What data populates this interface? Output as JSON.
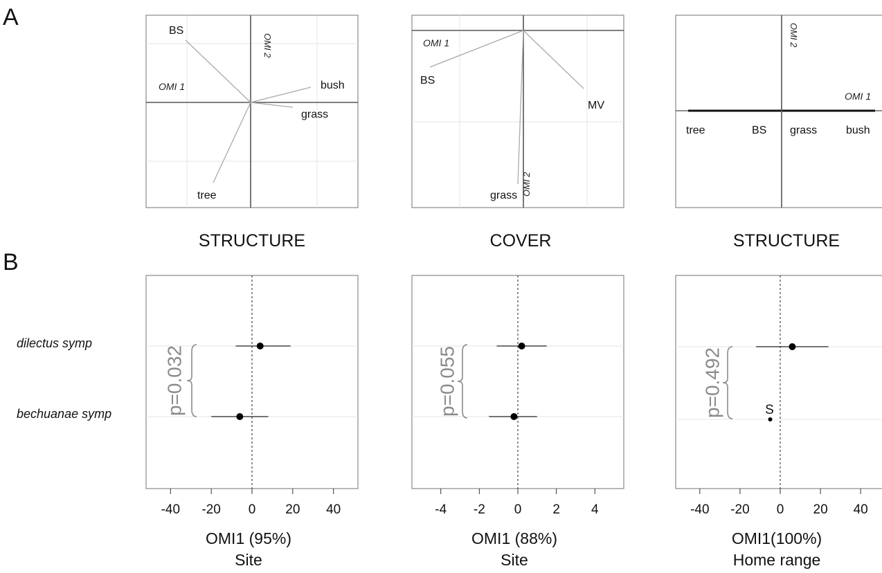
{
  "panel_labels": {
    "a": "A",
    "b": "B"
  },
  "biplot_titles": [
    "STRUCTURE",
    "COVER",
    "STRUCTURE"
  ],
  "species": [
    "dilectus symp",
    "bechuanae symp"
  ],
  "chart_data": [
    {
      "type": "scatter",
      "subtype": "biplot",
      "title": "STRUCTURE",
      "axis_labels": {
        "omi1": "OMI 1",
        "omi2": "OMI 2"
      },
      "xlim": [
        -1.3,
        1.3
      ],
      "ylim": [
        -1.3,
        1.3
      ],
      "grid": true,
      "vectors": [
        {
          "label": "BS",
          "x": -0.8,
          "y": 0.75
        },
        {
          "label": "bush",
          "x": 0.75,
          "y": 0.18
        },
        {
          "label": "grass",
          "x": 0.5,
          "y": -0.05
        },
        {
          "label": "tree",
          "x": -0.45,
          "y": -0.95
        }
      ]
    },
    {
      "type": "scatter",
      "subtype": "biplot",
      "title": "COVER",
      "axis_labels": {
        "omi1": "OMI 1",
        "omi2": "OMI 2"
      },
      "xlim": [
        -1.3,
        1.3
      ],
      "ylim": [
        -1.3,
        1.3
      ],
      "grid": true,
      "vectors": [
        {
          "label": "BS",
          "x": -1.2,
          "y": -0.36
        },
        {
          "label": "MV",
          "x": 0.85,
          "y": -0.78
        },
        {
          "label": "grass",
          "x": -0.05,
          "y": -2.02
        }
      ]
    },
    {
      "type": "scatter",
      "subtype": "biplot",
      "title": "STRUCTURE",
      "axis_labels": {
        "omi1": "OMI 1",
        "omi2": "OMI 2"
      },
      "grid": false,
      "variables": [
        "tree",
        "BS",
        "grass",
        "bush"
      ]
    },
    {
      "type": "scatter",
      "subtype": "dot-interval",
      "xlabel": "OMI1 (95%)",
      "xlabel2": "Site",
      "xlim": [
        -52,
        52
      ],
      "xticks": [
        "-40",
        "-20",
        "0",
        "20",
        "40"
      ],
      "pvalue": "p=0.032",
      "series": [
        {
          "name": "dilectus symp",
          "x": 4,
          "lo": -8,
          "hi": 19
        },
        {
          "name": "bechuanae symp",
          "x": -6,
          "lo": -20,
          "hi": 8
        }
      ]
    },
    {
      "type": "scatter",
      "subtype": "dot-interval",
      "xlabel": "OMI1 (88%)",
      "xlabel2": "Site",
      "xlim": [
        -5.5,
        5.5
      ],
      "xticks": [
        "-4",
        "-2",
        "0",
        "2",
        "4"
      ],
      "pvalue": "p=0.055",
      "series": [
        {
          "name": "dilectus symp",
          "x": 0.2,
          "lo": -1.1,
          "hi": 1.5
        },
        {
          "name": "bechuanae symp",
          "x": -0.2,
          "lo": -1.5,
          "hi": 1.0
        }
      ]
    },
    {
      "type": "scatter",
      "subtype": "dot-interval",
      "xlabel": "OMI1(100%)",
      "xlabel2": "Home range",
      "xlim": [
        -52,
        52
      ],
      "xticks": [
        "-40",
        "-20",
        "0",
        "20",
        "40"
      ],
      "pvalue": "p=0.492",
      "series": [
        {
          "name": "dilectus symp",
          "x": 6,
          "lo": -12,
          "hi": 24
        },
        {
          "name": "bechuanae symp",
          "x": -5,
          "lo": -6,
          "hi": -4,
          "annotation": "S"
        }
      ]
    }
  ]
}
